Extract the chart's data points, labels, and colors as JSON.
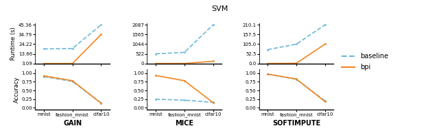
{
  "title": "SVM",
  "methods": [
    "GAIN",
    "MICE",
    "SOFTIMPUTE"
  ],
  "datasets": [
    "mnist",
    "fashion_mnist",
    "cifar10"
  ],
  "runtime": {
    "baseline": {
      "GAIN": [
        19.0,
        19.5,
        45.36
      ],
      "MICE": [
        522,
        600,
        2087
      ],
      "SOFTIMPUTE": [
        75.0,
        105.0,
        210.1
      ]
    },
    "bpi": {
      "GAIN": [
        3.09,
        3.09,
        34.79
      ],
      "MICE": [
        2.0,
        4.0,
        120.0
      ],
      "SOFTIMPUTE": [
        0.2,
        1.5,
        105.0
      ]
    }
  },
  "accuracy": {
    "baseline": {
      "GAIN": [
        0.9,
        0.76,
        0.14
      ],
      "MICE": [
        0.25,
        0.22,
        0.16
      ],
      "SOFTIMPUTE": [
        0.97,
        0.82,
        0.2
      ]
    },
    "bpi": {
      "GAIN": [
        0.92,
        0.78,
        0.13
      ],
      "MICE": [
        0.93,
        0.78,
        0.15
      ],
      "SOFTIMPUTE": [
        0.97,
        0.83,
        0.18
      ]
    }
  },
  "runtime_yticks": {
    "GAIN": [
      3.09,
      13.66,
      24.22,
      34.79,
      45.36
    ],
    "MICE": [
      0,
      522,
      1044,
      1565,
      2087
    ],
    "SOFTIMPUTE": [
      0.0,
      52.5,
      105.0,
      157.5,
      210.1
    ]
  },
  "accuracy_yticks": [
    0.0,
    0.25,
    0.5,
    0.75,
    1.0
  ],
  "baseline_color": "#6ab8d8",
  "bpi_color": "#f4841e",
  "baseline_style": "--",
  "bpi_style": "-",
  "line_width": 1.2,
  "marker_size": 2.0,
  "font_size_title": 8,
  "font_size_labels": 6,
  "font_size_ticks": 5,
  "font_size_legend": 7,
  "background": "white"
}
